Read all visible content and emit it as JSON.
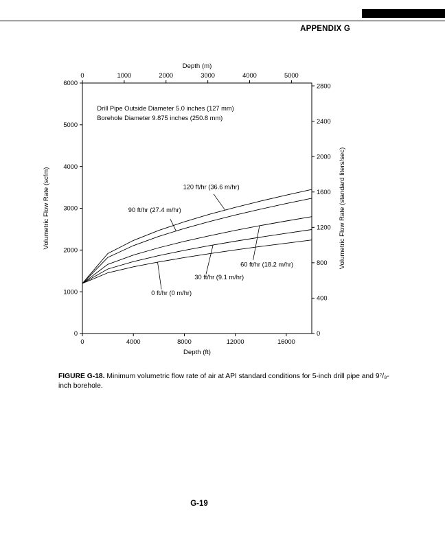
{
  "page": {
    "header": "APPENDIX G",
    "page_number": "G-19"
  },
  "figure_caption": {
    "label": "FIGURE G-18.",
    "text": "Minimum volumetric flow rate of air at API standard conditions for 5-inch drill pipe and 9⁷/₈-inch borehole."
  },
  "chart_data": {
    "type": "line",
    "title": "",
    "grid": false,
    "legend_position": "curve-labels",
    "inside_annotations": [
      "Drill Pipe Outside Diameter 5.0 inches (127 mm)",
      "Borehole Diameter 9.875 inches (250.8 mm)"
    ],
    "x_bottom": {
      "label": "Depth (ft)",
      "range": [
        0,
        18000
      ],
      "ticks": [
        0,
        4000,
        8000,
        12000,
        16000
      ]
    },
    "x_top": {
      "label": "Depth (m)",
      "ticks": [
        0,
        1000,
        2000,
        3000,
        4000,
        5000
      ],
      "ft_per_m": 3.28084
    },
    "y_left": {
      "label": "Volumetric Flow Rate (scfm)",
      "range": [
        0,
        6000
      ],
      "ticks": [
        0,
        1000,
        2000,
        3000,
        4000,
        5000,
        6000
      ]
    },
    "y_right": {
      "label": "Volumetric Flow Rate (standard liters/sec)",
      "ticks": [
        0,
        400,
        800,
        1200,
        1600,
        2000,
        2400,
        2800
      ],
      "scfm_per_liter_sec": 2.11888
    },
    "x": [
      0,
      2000,
      4000,
      6000,
      8000,
      10000,
      12000,
      14000,
      16000,
      18000
    ],
    "series": [
      {
        "name": "120 ft/hr (36.6 m/hr)",
        "values": [
          1200,
          1918,
          2229,
          2471,
          2676,
          2858,
          3022,
          3174,
          3316,
          3450
        ],
        "label_pos": [
          7900,
          3460
        ],
        "leader": {
          "from": [
            10300,
            3340
          ],
          "touch_x": 11200
        }
      },
      {
        "name": "90 ft/hr (27.4 m/hr)",
        "values": [
          1200,
          1823,
          2106,
          2327,
          2517,
          2685,
          2839,
          2981,
          3114,
          3240
        ],
        "label_pos": [
          3600,
          2910
        ],
        "leader": {
          "from": [
            6900,
            2740
          ],
          "touch_x": 7350
        }
      },
      {
        "name": "60 ft/hr (18.2 m/hr)",
        "values": [
          1200,
          1657,
          1879,
          2055,
          2208,
          2344,
          2470,
          2587,
          2696,
          2800
        ],
        "label_pos": [
          12400,
          1600
        ],
        "leader": {
          "from": [
            13400,
            1760
          ],
          "touch_x": 13900
        }
      },
      {
        "name": "30 ft/hr (9.1 m/hr)",
        "values": [
          1200,
          1545,
          1723,
          1867,
          1993,
          2107,
          2211,
          2309,
          2402,
          2490
        ],
        "label_pos": [
          8800,
          1300
        ],
        "leader": {
          "from": [
            9700,
            1420
          ],
          "touch_x": 10250
        }
      },
      {
        "name": "0 ft/hr (0 m/hr)",
        "values": [
          1200,
          1455,
          1597,
          1715,
          1819,
          1914,
          2002,
          2086,
          2164,
          2240
        ],
        "label_pos": [
          5400,
          920
        ],
        "leader": {
          "from": [
            6200,
            1060
          ],
          "touch_x": 5900
        }
      }
    ]
  }
}
